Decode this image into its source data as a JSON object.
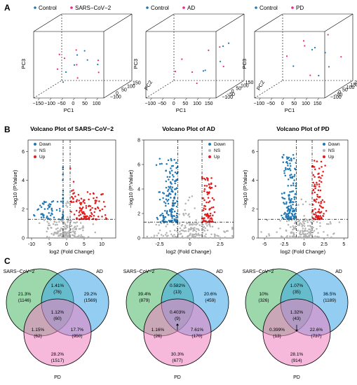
{
  "panels": {
    "a": "A",
    "b": "B",
    "c": "C"
  },
  "colors": {
    "control": "#1f78b4",
    "case": "#e7298a",
    "down": "#1f78b4",
    "ns": "#b3b3b3",
    "up": "#e31a1c",
    "venn_sars": "#4db868",
    "venn_ad": "#3aa6e8",
    "venn_pd": "#ee7fc0"
  },
  "chart_data": [
    {
      "type": "scatter",
      "kind": "pca3d",
      "legend": [
        "Control",
        "SARS−CoV−2"
      ],
      "xlabel": "PC1",
      "ylabel": "PC2",
      "zlabel": "PC3",
      "x_ticks": [
        "−150",
        "−100",
        "−50",
        "0",
        "50",
        "100"
      ],
      "y_ticks": [
        "−100",
        "0",
        "50",
        "100",
        "150"
      ],
      "points": {
        "control": [
          [
            -80,
            20,
            30
          ],
          [
            -40,
            40,
            60
          ],
          [
            -20,
            -40,
            50
          ],
          [
            0,
            20,
            70
          ],
          [
            40,
            60,
            40
          ],
          [
            -60,
            -60,
            20
          ],
          [
            20,
            0,
            55
          ]
        ],
        "case": [
          [
            -100,
            -20,
            40
          ],
          [
            -90,
            30,
            55
          ],
          [
            -60,
            80,
            65
          ],
          [
            -30,
            10,
            45
          ],
          [
            10,
            -80,
            30
          ],
          [
            50,
            40,
            50
          ],
          [
            80,
            -30,
            35
          ],
          [
            -120,
            50,
            60
          ]
        ]
      }
    },
    {
      "type": "scatter",
      "kind": "pca3d",
      "legend": [
        "Control",
        "AD"
      ],
      "xlabel": "PC1",
      "ylabel": "PC2",
      "zlabel": "PC3",
      "x_ticks": [
        "−100",
        "−50",
        "0",
        "50",
        "100",
        "150"
      ],
      "y_ticks": [
        "−100",
        "−50",
        "0",
        "50",
        "100",
        "150"
      ],
      "points": {
        "control": [
          [
            120,
            60,
            80
          ],
          [
            100,
            20,
            50
          ],
          [
            60,
            -40,
            40
          ],
          [
            80,
            100,
            70
          ],
          [
            20,
            40,
            30
          ]
        ],
        "case": [
          [
            -60,
            -60,
            40
          ],
          [
            -20,
            20,
            30
          ],
          [
            40,
            -80,
            20
          ],
          [
            90,
            40,
            75
          ],
          [
            -80,
            60,
            50
          ],
          [
            10,
            120,
            60
          ],
          [
            130,
            -20,
            45
          ]
        ]
      }
    },
    {
      "type": "scatter",
      "kind": "pca3d",
      "legend": [
        "Control",
        "PD"
      ],
      "xlabel": "PC1",
      "ylabel": "PC2",
      "zlabel": "PC3",
      "x_ticks": [
        "−100",
        "−50",
        "0",
        "50",
        "100",
        "150"
      ],
      "y_ticks": [
        "−100",
        "−50",
        "0",
        "50",
        "100",
        "150",
        "200"
      ],
      "points": {
        "control": [
          [
            20,
            40,
            70
          ],
          [
            60,
            80,
            60
          ],
          [
            100,
            20,
            40
          ],
          [
            -20,
            -60,
            50
          ],
          [
            80,
            -40,
            30
          ],
          [
            0,
            120,
            65
          ]
        ],
        "case": [
          [
            -40,
            100,
            80
          ],
          [
            40,
            160,
            85
          ],
          [
            -80,
            20,
            60
          ],
          [
            120,
            100,
            50
          ],
          [
            60,
            -80,
            35
          ],
          [
            -20,
            60,
            75
          ]
        ]
      }
    },
    {
      "type": "scatter",
      "kind": "volcano",
      "title": "Volcano Plot of SARS−CoV−2",
      "xlabel": "log2 (Fold Change)",
      "ylabel": "−log10 (P.Value)",
      "legend": [
        "Down",
        "NS",
        "Up"
      ],
      "x_ticks": [
        -10,
        -5,
        0,
        5,
        10
      ],
      "y_ticks": [
        0,
        2,
        4,
        6
      ],
      "xlim": [
        -11,
        14
      ],
      "ylim": [
        0,
        6.8
      ],
      "fc_threshold": 1,
      "p_threshold": 1.3,
      "ns_clouds": [
        {
          "cx": 0,
          "sx": 3.2,
          "ymax": 1.3,
          "n": 160
        },
        {
          "cx": 0,
          "sx": 0.6,
          "ymax": 3.0,
          "n": 30
        }
      ],
      "down_clouds": [
        {
          "cx": -5,
          "sx": 2,
          "ymin": 1.3,
          "ymax": 2.6,
          "n": 50
        },
        {
          "cx": -0.8,
          "sx": 0.1,
          "ymin": 1.4,
          "ymax": 5.5,
          "n": 20
        }
      ],
      "up_clouds": [
        {
          "cx": 6,
          "sx": 2.5,
          "ymin": 1.3,
          "ymax": 3.2,
          "n": 110
        },
        {
          "cx": 1.5,
          "sx": 0.4,
          "ymin": 2.5,
          "ymax": 5.2,
          "n": 12
        }
      ]
    },
    {
      "type": "scatter",
      "kind": "volcano",
      "title": "Volcano Plot of AD",
      "xlabel": "log2 (Fold Change)",
      "ylabel": "−log10 (P.Value)",
      "legend": [
        "Down",
        "NS",
        "Up"
      ],
      "x_ticks": [
        -2.5,
        0,
        2.5
      ],
      "y_ticks": [
        0,
        2,
        4,
        6,
        8
      ],
      "xlim": [
        -3.8,
        3.6
      ],
      "ylim": [
        0,
        8
      ],
      "fc_threshold": 1,
      "p_threshold": 1.3,
      "ns_clouds": [
        {
          "cx": 0,
          "sx": 1.6,
          "ymax": 1.3,
          "n": 150
        },
        {
          "cx": 0,
          "sx": 0.35,
          "ymax": 3.5,
          "n": 40
        }
      ],
      "down_clouds": [
        {
          "cx": -1.6,
          "sx": 0.5,
          "ymin": 1.3,
          "ymax": 6.5,
          "n": 170
        }
      ],
      "up_clouds": [
        {
          "cx": 1.5,
          "sx": 0.35,
          "ymin": 1.3,
          "ymax": 5.0,
          "n": 90
        }
      ]
    },
    {
      "type": "scatter",
      "kind": "volcano",
      "title": "Volcano Plot of PD",
      "xlabel": "log2 (Fold Change)",
      "ylabel": "−log10 (P.Value)",
      "legend": [
        "Down",
        "NS",
        "Up"
      ],
      "x_ticks": [
        -5.0,
        -2.5,
        0.0,
        2.5,
        5.0
      ],
      "y_ticks": [
        0,
        2,
        4,
        6
      ],
      "xlim": [
        -5.8,
        5.5
      ],
      "ylim": [
        0,
        6.8
      ],
      "fc_threshold": 1,
      "p_threshold": 1.3,
      "ns_clouds": [
        {
          "cx": 0,
          "sx": 1.6,
          "ymax": 1.3,
          "n": 140
        },
        {
          "cx": 0,
          "sx": 0.4,
          "ymax": 2.8,
          "n": 30
        }
      ],
      "down_clouds": [
        {
          "cx": -1.8,
          "sx": 0.55,
          "ymin": 1.3,
          "ymax": 5.8,
          "n": 150
        }
      ],
      "up_clouds": [
        {
          "cx": 1.7,
          "sx": 0.5,
          "ymin": 1.3,
          "ymax": 5.5,
          "n": 100
        }
      ]
    },
    {
      "type": "venn",
      "sets": [
        "SARS−CoV−2",
        "AD",
        "PD"
      ],
      "arrow": "none",
      "regions": {
        "sars_only": [
          "21.3%",
          "(1146)"
        ],
        "sars_ad": [
          "1.41%",
          "(76)"
        ],
        "ad_only": [
          "29.2%",
          "(1569)"
        ],
        "center": [
          "1.12%",
          "(60)"
        ],
        "sars_pd": [
          "1.15%",
          "(62)"
        ],
        "ad_pd": [
          "17.7%",
          "(950)"
        ],
        "pd_only": [
          "28.2%",
          "(1517)"
        ]
      }
    },
    {
      "type": "venn",
      "sets": [
        "SARS−CoV−2",
        "AD",
        "PD"
      ],
      "arrow": "up",
      "regions": {
        "sars_only": [
          "39.4%",
          "(879)"
        ],
        "sars_ad": [
          "0.582%",
          "(13)"
        ],
        "ad_only": [
          "20.6%",
          "(459)"
        ],
        "center": [
          "0.403%",
          "(9)"
        ],
        "sars_pd": [
          "1.16%",
          "(26)"
        ],
        "ad_pd": [
          "7.61%",
          "(170)"
        ],
        "pd_only": [
          "30.3%",
          "(677)"
        ]
      }
    },
    {
      "type": "venn",
      "sets": [
        "SARS−CoV−2",
        "AD",
        "PD"
      ],
      "arrow": "down",
      "regions": {
        "sars_only": [
          "10%",
          "(326)"
        ],
        "sars_ad": [
          "1.07%",
          "(35)"
        ],
        "ad_only": [
          "36.5%",
          "(1189)"
        ],
        "center": [
          "1.32%",
          "(43)"
        ],
        "sars_pd": [
          "0.399%",
          "(13)"
        ],
        "ad_pd": [
          "22.6%",
          "(737)"
        ],
        "pd_only": [
          "28.1%",
          "(914)"
        ]
      }
    }
  ]
}
